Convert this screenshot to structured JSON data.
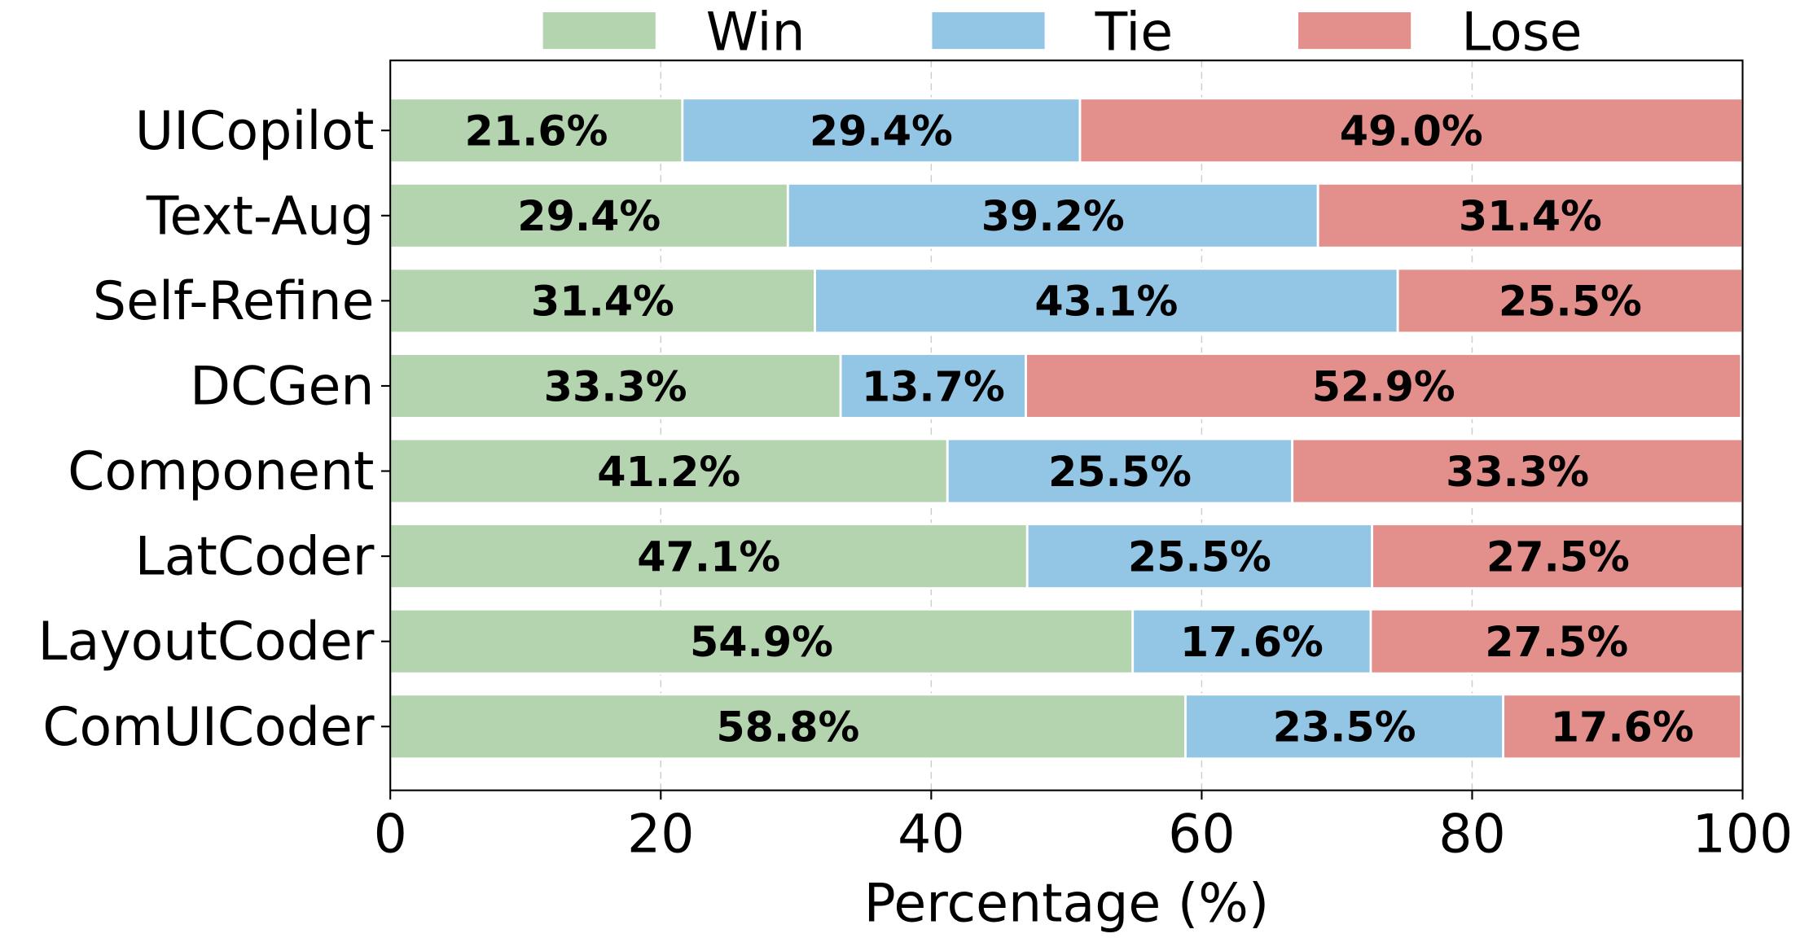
{
  "chart_data": {
    "type": "bar",
    "orientation": "horizontal",
    "stacked": true,
    "title": "",
    "xlabel": "Percentage (%)",
    "ylabel": "",
    "xlim": [
      0,
      100
    ],
    "xticks": [
      "0",
      "20",
      "40",
      "60",
      "80",
      "100"
    ],
    "grid": "vertical dashed",
    "legend_position": "top-center",
    "categories": [
      "UICopilot",
      "Text-Aug",
      "Self-Refine",
      "DCGen",
      "Component",
      "LatCoder",
      "LayoutCoder",
      "ComUICoder"
    ],
    "series": [
      {
        "name": "Win",
        "color": "#b3d4ae",
        "values": [
          21.6,
          29.4,
          31.4,
          33.3,
          41.2,
          47.1,
          54.9,
          58.8
        ],
        "labels": [
          "21.6%",
          "29.4%",
          "31.4%",
          "33.3%",
          "41.2%",
          "47.1%",
          "54.9%",
          "58.8%"
        ]
      },
      {
        "name": "Tie",
        "color": "#93c5e5",
        "values": [
          29.4,
          39.2,
          43.1,
          13.7,
          25.5,
          25.5,
          17.6,
          23.5
        ],
        "labels": [
          "29.4%",
          "39.2%",
          "43.1%",
          "13.7%",
          "25.5%",
          "25.5%",
          "17.6%",
          "23.5%"
        ]
      },
      {
        "name": "Lose",
        "color": "#e38f8c",
        "values": [
          49.0,
          31.4,
          25.5,
          52.9,
          33.3,
          27.5,
          27.5,
          17.6
        ],
        "labels": [
          "49.0%",
          "31.4%",
          "25.5%",
          "52.9%",
          "33.3%",
          "27.5%",
          "27.5%",
          "17.6%"
        ]
      }
    ]
  }
}
